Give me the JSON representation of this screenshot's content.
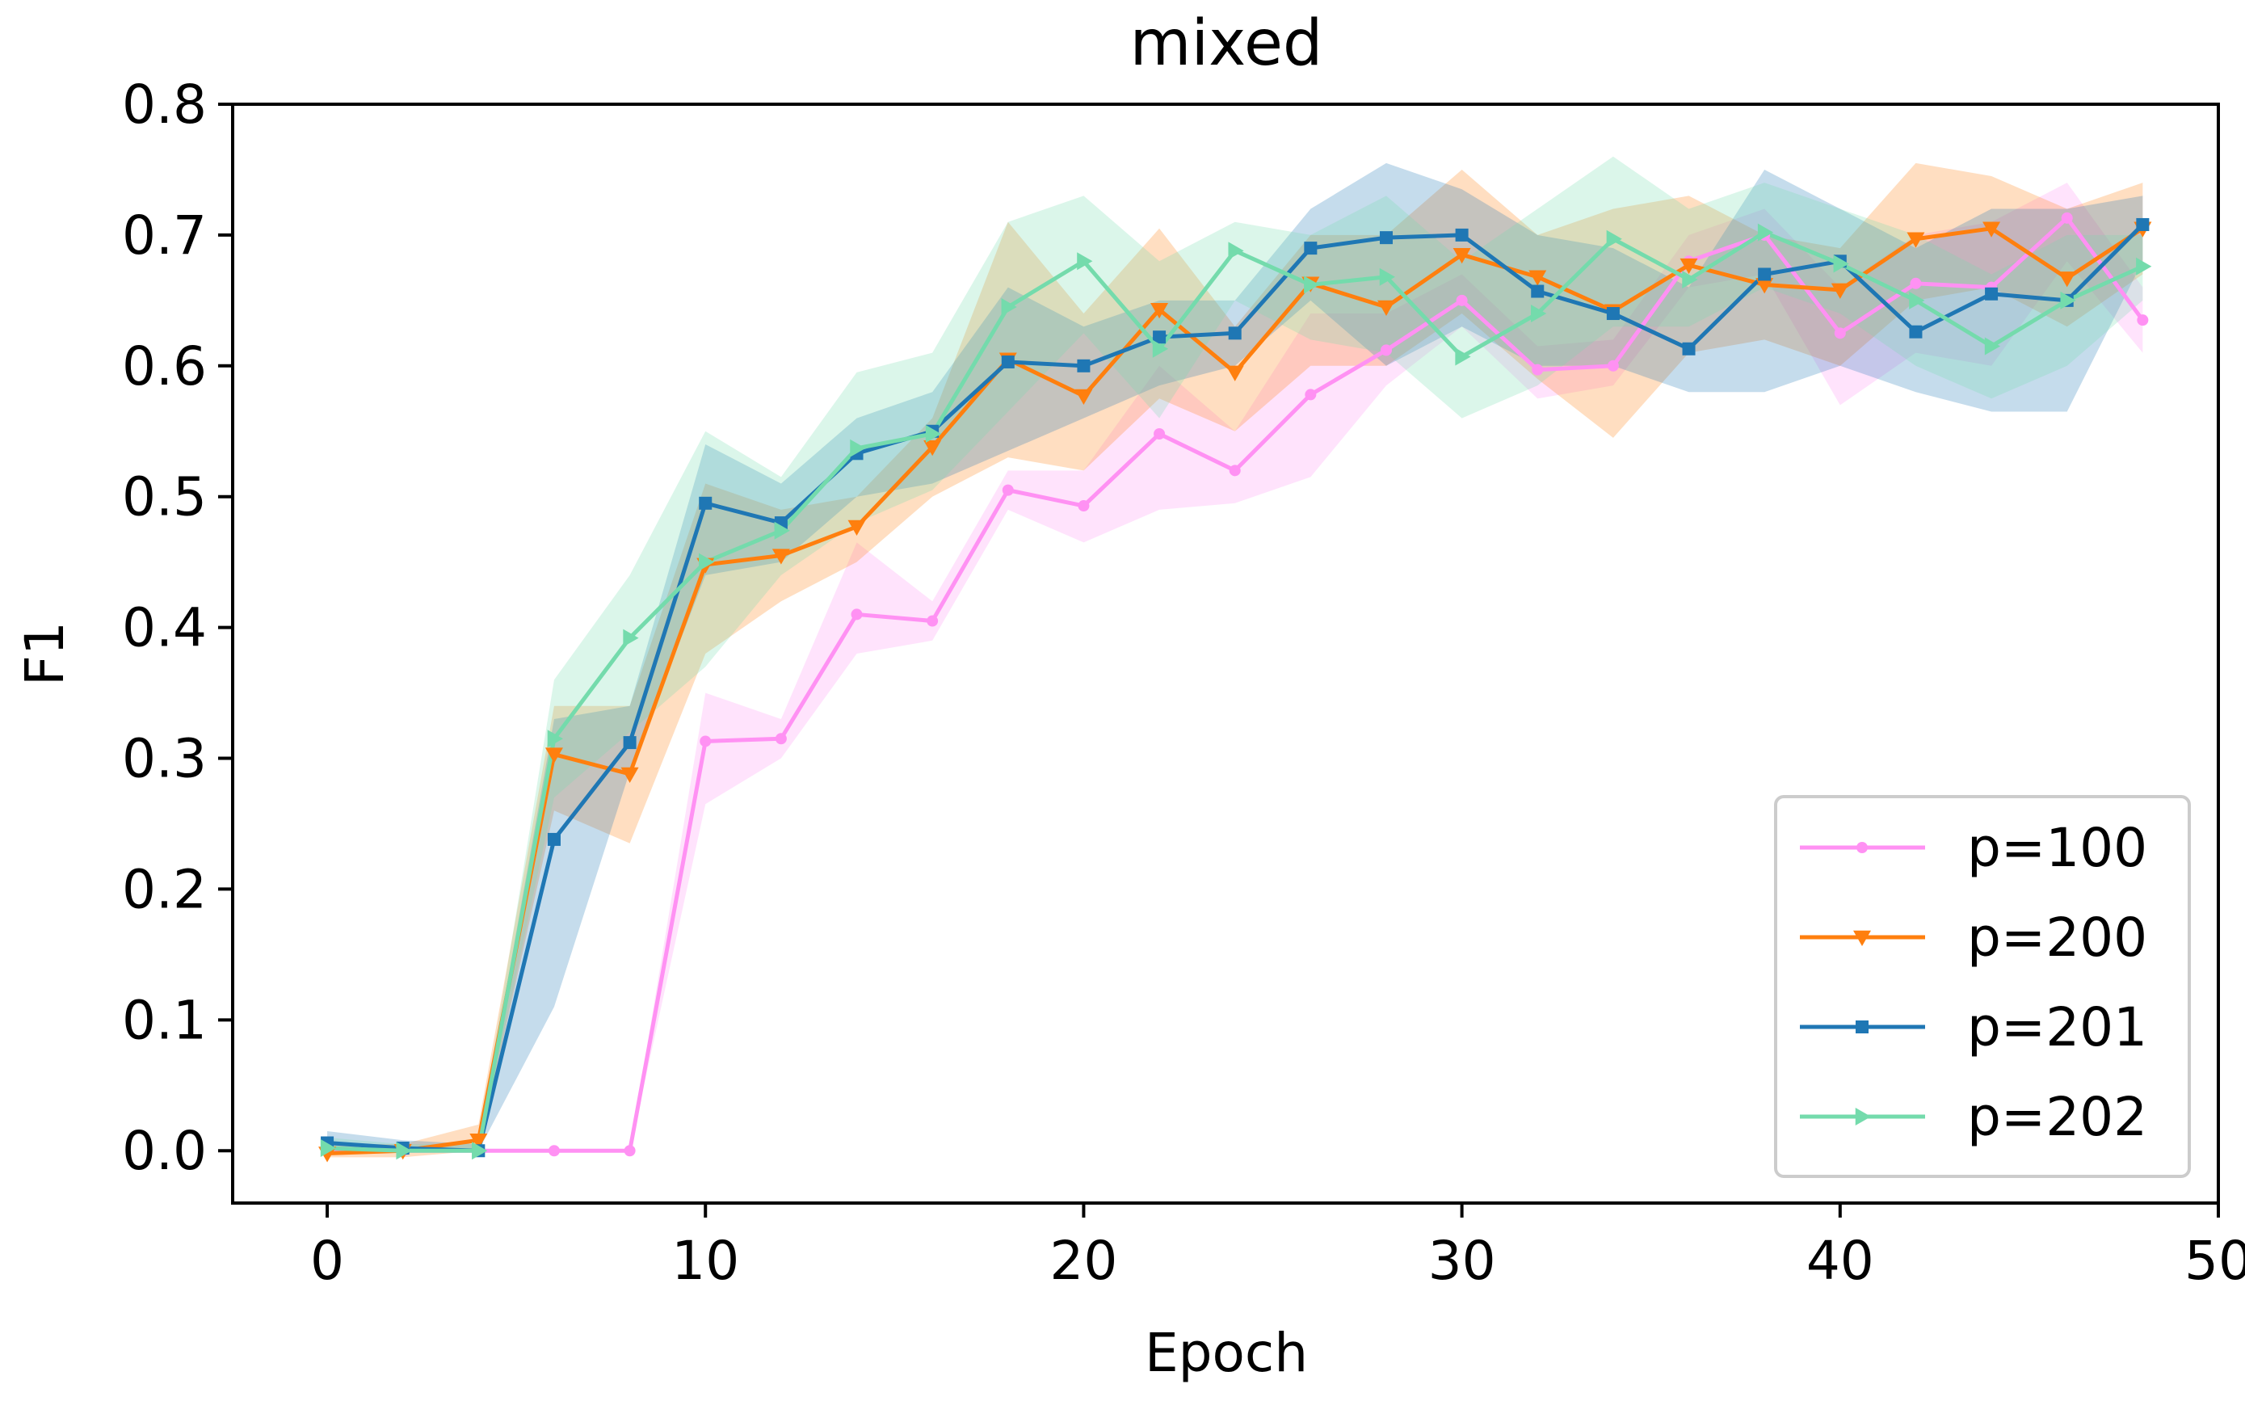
{
  "chart_data": {
    "type": "line",
    "title": "mixed",
    "xlabel": "Epoch",
    "ylabel": "F1",
    "xlim": [
      -2.5,
      50
    ],
    "ylim": [
      -0.04,
      0.8
    ],
    "xticks": [
      0,
      10,
      20,
      30,
      40,
      50
    ],
    "yticks": [
      0.0,
      0.1,
      0.2,
      0.3,
      0.4,
      0.5,
      0.6,
      0.7,
      0.8
    ],
    "xtick_labels": [
      "0",
      "10",
      "20",
      "30",
      "40",
      "50"
    ],
    "ytick_labels": [
      "0.0",
      "0.1",
      "0.2",
      "0.3",
      "0.4",
      "0.5",
      "0.6",
      "0.7",
      "0.8"
    ],
    "grid": false,
    "legend_position": "lower-right",
    "x": [
      0,
      2,
      4,
      6,
      8,
      10,
      12,
      14,
      16,
      18,
      20,
      22,
      24,
      26,
      28,
      30,
      32,
      34,
      36,
      38,
      40,
      42,
      44,
      46,
      48
    ],
    "series": [
      {
        "name": "p=100",
        "color": "#ff91f3",
        "marker": "point",
        "values": [
          0.0,
          0.0,
          0.0,
          0.0,
          0.0,
          0.313,
          0.315,
          0.41,
          0.405,
          0.505,
          0.493,
          0.548,
          0.52,
          0.578,
          0.612,
          0.65,
          0.597,
          0.6,
          0.68,
          0.7,
          0.625,
          0.663,
          0.66,
          0.713,
          0.635
        ],
        "band_low": [
          0.0,
          0.0,
          0.0,
          0.0,
          0.0,
          0.265,
          0.3,
          0.38,
          0.39,
          0.49,
          0.465,
          0.49,
          0.495,
          0.515,
          0.585,
          0.63,
          0.575,
          0.585,
          0.66,
          0.67,
          0.57,
          0.61,
          0.6,
          0.68,
          0.61
        ],
        "band_high": [
          0.0,
          0.0,
          0.0,
          0.0,
          0.0,
          0.35,
          0.33,
          0.465,
          0.42,
          0.52,
          0.52,
          0.6,
          0.55,
          0.64,
          0.64,
          0.67,
          0.615,
          0.62,
          0.7,
          0.72,
          0.66,
          0.7,
          0.71,
          0.74,
          0.66
        ]
      },
      {
        "name": "p=200",
        "color": "#ff7f0e",
        "marker": "triangle_down",
        "values": [
          -0.002,
          0.0,
          0.008,
          0.303,
          0.288,
          0.448,
          0.455,
          0.477,
          0.538,
          0.605,
          0.577,
          0.643,
          0.595,
          0.663,
          0.645,
          0.685,
          0.668,
          0.642,
          0.677,
          0.662,
          0.658,
          0.697,
          0.705,
          0.667,
          0.705
        ],
        "band_low": [
          -0.005,
          -0.005,
          0.0,
          0.26,
          0.235,
          0.38,
          0.42,
          0.45,
          0.5,
          0.53,
          0.52,
          0.575,
          0.55,
          0.6,
          0.6,
          0.64,
          0.59,
          0.545,
          0.61,
          0.62,
          0.6,
          0.65,
          0.66,
          0.63,
          0.67
        ],
        "band_high": [
          0.005,
          0.005,
          0.02,
          0.34,
          0.34,
          0.51,
          0.49,
          0.5,
          0.56,
          0.71,
          0.64,
          0.705,
          0.63,
          0.7,
          0.7,
          0.75,
          0.7,
          0.72,
          0.73,
          0.7,
          0.69,
          0.755,
          0.745,
          0.72,
          0.74
        ]
      },
      {
        "name": "p=201",
        "color": "#1f77b4",
        "marker": "square",
        "values": [
          0.006,
          0.002,
          0.0,
          0.238,
          0.312,
          0.495,
          0.48,
          0.533,
          0.55,
          0.603,
          0.6,
          0.622,
          0.625,
          0.69,
          0.698,
          0.7,
          0.657,
          0.64,
          0.613,
          0.67,
          0.68,
          0.626,
          0.655,
          0.65,
          0.708
        ],
        "band_low": [
          0.0,
          0.0,
          0.0,
          0.11,
          0.29,
          0.44,
          0.45,
          0.5,
          0.51,
          0.535,
          0.56,
          0.585,
          0.6,
          0.65,
          0.6,
          0.63,
          0.6,
          0.6,
          0.58,
          0.58,
          0.6,
          0.58,
          0.565,
          0.565,
          0.68
        ],
        "band_high": [
          0.015,
          0.008,
          0.005,
          0.33,
          0.34,
          0.54,
          0.51,
          0.56,
          0.58,
          0.66,
          0.63,
          0.65,
          0.65,
          0.72,
          0.755,
          0.735,
          0.7,
          0.69,
          0.66,
          0.75,
          0.72,
          0.69,
          0.72,
          0.72,
          0.73
        ]
      },
      {
        "name": "p=202",
        "color": "#74dbac",
        "marker": "triangle_right",
        "values": [
          0.002,
          0.0,
          0.0,
          0.315,
          0.392,
          0.45,
          0.474,
          0.537,
          0.548,
          0.645,
          0.68,
          0.613,
          0.688,
          0.662,
          0.668,
          0.607,
          0.64,
          0.697,
          0.666,
          0.702,
          0.678,
          0.65,
          0.615,
          0.65,
          0.676
        ],
        "band_low": [
          0.0,
          0.0,
          0.0,
          0.27,
          0.32,
          0.37,
          0.44,
          0.48,
          0.505,
          0.565,
          0.625,
          0.56,
          0.65,
          0.62,
          0.61,
          0.56,
          0.585,
          0.63,
          0.63,
          0.66,
          0.64,
          0.6,
          0.575,
          0.6,
          0.65
        ],
        "band_high": [
          0.01,
          0.005,
          0.005,
          0.36,
          0.44,
          0.55,
          0.515,
          0.595,
          0.61,
          0.71,
          0.73,
          0.68,
          0.71,
          0.7,
          0.73,
          0.68,
          0.72,
          0.76,
          0.72,
          0.74,
          0.72,
          0.7,
          0.67,
          0.7,
          0.7
        ]
      }
    ]
  }
}
